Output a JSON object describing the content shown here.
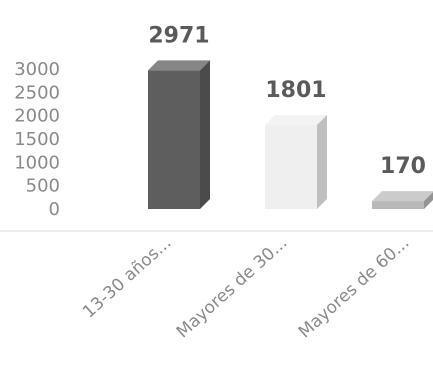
{
  "chart_data": {
    "type": "bar",
    "categories": [
      "13-30 años...",
      "Mayores de 30...",
      "Mayores de 60..."
    ],
    "values": [
      2971,
      1801,
      170
    ],
    "data_labels": [
      "2971",
      "1801",
      "170"
    ],
    "y_ticks": [
      "3000",
      "2500",
      "2000",
      "1500",
      "1000",
      "500",
      "0"
    ],
    "ylim": [
      0,
      3000
    ],
    "title": "",
    "xlabel": "",
    "ylabel": "",
    "grid": false,
    "style": "3d",
    "colors": [
      "#5e5e5e",
      "#efefef",
      "#b9b9b9"
    ]
  }
}
